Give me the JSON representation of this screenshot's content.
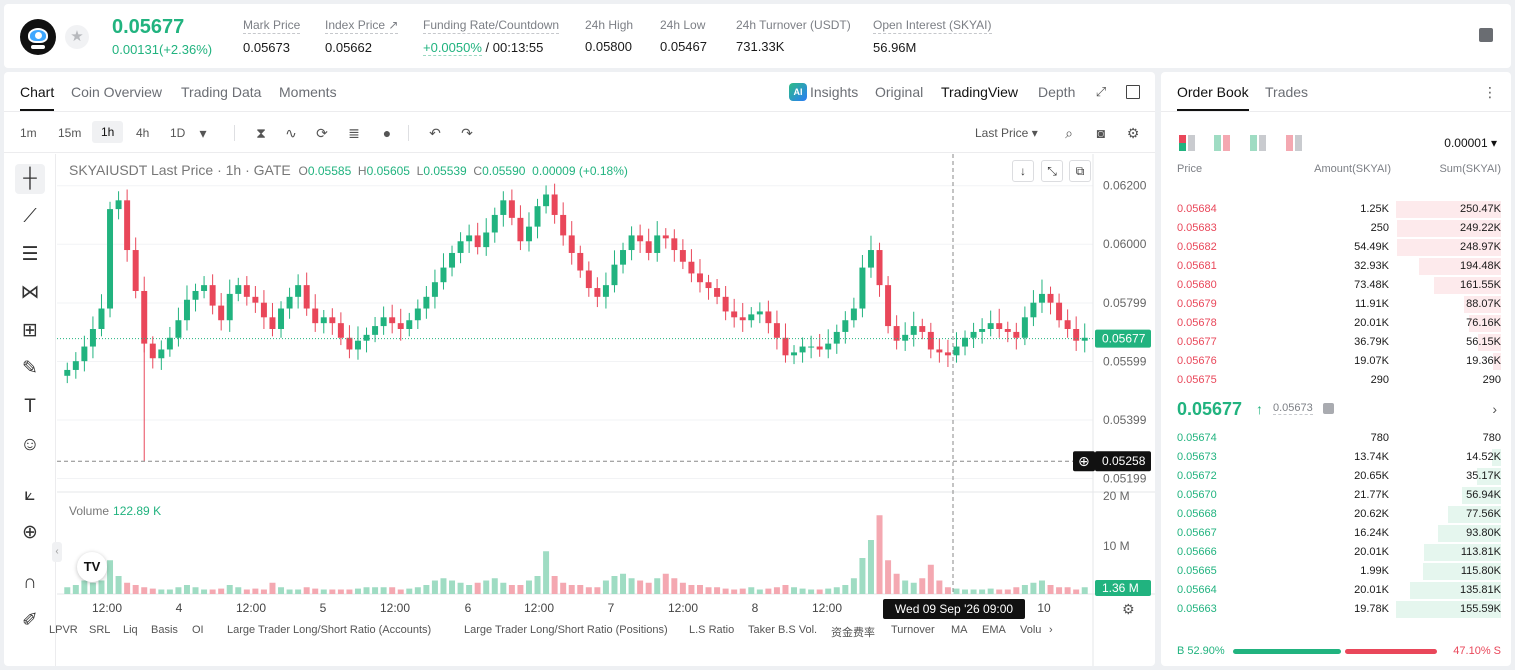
{
  "ticker": {
    "last_price": "0.05677",
    "change": "0.00131(+2.36%)",
    "stats": [
      {
        "label": "Mark Price",
        "value": "0.05673"
      },
      {
        "label": "Index Price ↗",
        "value": "0.05662"
      },
      {
        "label": "Funding Rate/Countdown",
        "value_green": "+0.0050%",
        "value": "/ 00:13:55"
      },
      {
        "label": "24h High",
        "value": "0.05800"
      },
      {
        "label": "24h Low",
        "value": "0.05467"
      },
      {
        "label": "24h Turnover (USDT)",
        "value": "731.33K"
      },
      {
        "label": "Open Interest (SKYAI)",
        "value": "56.96M"
      }
    ]
  },
  "chart_tabs": [
    "Chart",
    "Coin Overview",
    "Trading Data",
    "Moments"
  ],
  "view_tabs": {
    "ai_badge": "AI",
    "insights": "Insights",
    "original": "Original",
    "tradingview": "TradingView",
    "depth": "Depth"
  },
  "toolbar": {
    "timeframes": [
      "1m",
      "15m",
      "1h",
      "4h",
      "1D"
    ],
    "price_type": "Last Price"
  },
  "icons": {
    "star": "★",
    "dropdown": "▾",
    "candles": "⧗",
    "indicators": "∿",
    "replay": "⟳",
    "templates": "≣",
    "add": "●",
    "undo": "↶",
    "redo": "↷",
    "search": "⌕",
    "camera": "◙",
    "gear": "⚙",
    "crosshair": "┼",
    "trendline": "⟋",
    "fib": "☰",
    "pattern": "⋈",
    "ruler": "⊞",
    "brush": "✎",
    "text": "T",
    "emoji": "☺",
    "measure": "⟀",
    "zoom": "⊕",
    "magnet": "∩",
    "pencil": "✐",
    "arrow_down": "↓",
    "shrink": "⤡",
    "restore": "⧉",
    "expand": "⤢",
    "more": "⋮",
    "chevron_right": "›",
    "chevron_left": "‹",
    "up_arrow": "↑"
  },
  "chart_data": {
    "type": "candlestick",
    "symbol_title": "SKYAIUSDT Last Price · 1h · GATE",
    "ohlc": {
      "o_label": "O",
      "o": "0.05585",
      "h_label": "H",
      "h": "0.05605",
      "l_label": "L",
      "l": "0.05539",
      "c_label": "C",
      "c": "0.05590",
      "chg": "0.00009 (+0.18%)"
    },
    "price_axis": [
      "0.06200",
      "0.06000",
      "0.05799",
      "0.05599",
      "0.05399",
      "0.05199"
    ],
    "ylim": [
      0.0518,
      0.0624
    ],
    "current_price_label": "0.05677",
    "current_price": 0.05677,
    "crosshair_price_label": "0.05258",
    "crosshair_price": 0.05258,
    "crosshair_time": "Wed 09 Sep '26   09:00",
    "volume_label": "Volume",
    "volume_value": "122.89 K",
    "volume_axis": [
      "20 M",
      "10 M"
    ],
    "volume_last_label": "1.36 M",
    "time_axis": [
      "12:00",
      "4",
      "12:00",
      "5",
      "12:00",
      "6",
      "12:00",
      "7",
      "12:00",
      "8",
      "12:00",
      "10"
    ],
    "close_series": [
      0.0557,
      0.056,
      0.0565,
      0.0571,
      0.0578,
      0.0612,
      0.0615,
      0.0598,
      0.0584,
      0.0566,
      0.0561,
      0.0564,
      0.0568,
      0.0574,
      0.0581,
      0.0584,
      0.0586,
      0.0579,
      0.0574,
      0.0583,
      0.0586,
      0.0582,
      0.058,
      0.0575,
      0.0571,
      0.0578,
      0.0582,
      0.0586,
      0.0578,
      0.0573,
      0.0575,
      0.0573,
      0.0568,
      0.0564,
      0.0567,
      0.0569,
      0.0572,
      0.0575,
      0.0573,
      0.0571,
      0.0574,
      0.0578,
      0.0582,
      0.0587,
      0.0592,
      0.0597,
      0.0601,
      0.0603,
      0.0599,
      0.0604,
      0.061,
      0.0615,
      0.0609,
      0.0601,
      0.0606,
      0.0613,
      0.0617,
      0.061,
      0.0603,
      0.0597,
      0.0591,
      0.0585,
      0.0582,
      0.0586,
      0.0593,
      0.0598,
      0.0603,
      0.0601,
      0.0597,
      0.0603,
      0.0602,
      0.0598,
      0.0594,
      0.059,
      0.0587,
      0.0585,
      0.0582,
      0.0577,
      0.0575,
      0.0574,
      0.0576,
      0.0577,
      0.0573,
      0.0568,
      0.0562,
      0.0563,
      0.0565,
      0.0565,
      0.0564,
      0.0566,
      0.057,
      0.0574,
      0.0578,
      0.0592,
      0.0598,
      0.0586,
      0.0572,
      0.0567,
      0.0569,
      0.0572,
      0.057,
      0.0564,
      0.0563,
      0.0562,
      0.0565,
      0.0568,
      0.057,
      0.0571,
      0.0573,
      0.0571,
      0.057,
      0.0568,
      0.0575,
      0.058,
      0.0583,
      0.058,
      0.0574,
      0.0571,
      0.0567,
      0.0568
    ],
    "volume_series": [
      1.5,
      2.0,
      3.0,
      2.5,
      3.0,
      7.5,
      4.0,
      2.5,
      2.0,
      1.5,
      1.2,
      1.0,
      1.0,
      1.5,
      2.0,
      1.5,
      1.0,
      1.0,
      1.2,
      2.0,
      1.5,
      1.0,
      1.2,
      1.0,
      2.5,
      1.5,
      1.0,
      1.0,
      1.5,
      1.2,
      1.0,
      1.0,
      1.0,
      1.0,
      1.2,
      1.5,
      1.5,
      1.5,
      1.5,
      1.0,
      1.2,
      1.5,
      2.0,
      3.0,
      3.5,
      3.0,
      2.5,
      2.0,
      2.5,
      3.0,
      3.5,
      2.5,
      2.0,
      2.0,
      3.0,
      4.0,
      9.5,
      4.0,
      2.5,
      2.0,
      2.0,
      1.5,
      1.5,
      3.0,
      4.0,
      4.5,
      3.5,
      3.0,
      2.5,
      3.5,
      4.5,
      3.5,
      2.5,
      2.0,
      2.0,
      1.5,
      1.5,
      1.2,
      1.0,
      1.2,
      1.5,
      1.0,
      1.2,
      1.5,
      2.0,
      1.5,
      1.2,
      1.0,
      1.0,
      1.2,
      1.5,
      2.0,
      3.5,
      8.0,
      12.0,
      17.5,
      7.5,
      4.5,
      3.0,
      2.5,
      3.5,
      6.5,
      3.0,
      1.5,
      1.2,
      1.0,
      1.0,
      1.0,
      1.2,
      1.0,
      1.0,
      1.5,
      2.0,
      2.5,
      3.0,
      2.0,
      1.5,
      1.5,
      1.0,
      1.5
    ]
  },
  "indicators": [
    "LPVR",
    "SRL",
    "Liq",
    "Basis",
    "OI",
    "Large Trader Long/Short Ratio (Accounts)",
    "Large Trader Long/Short Ratio (Positions)",
    "L.S Ratio",
    "Taker B.S Vol.",
    "资金费率",
    "Turnover",
    "MA",
    "EMA",
    "Volu"
  ],
  "order_book": {
    "tabs": [
      "Order Book",
      "Trades"
    ],
    "precision": "0.00001 ▾",
    "headers": {
      "price": "Price",
      "amount": "Amount(SKYAI)",
      "sum": "Sum(SKYAI)"
    },
    "asks": [
      {
        "price": "0.05684",
        "amount": "1.25K",
        "sum": "250.47K",
        "depth": 1.0
      },
      {
        "price": "0.05683",
        "amount": "250",
        "sum": "249.22K",
        "depth": 0.99
      },
      {
        "price": "0.05682",
        "amount": "54.49K",
        "sum": "248.97K",
        "depth": 0.99
      },
      {
        "price": "0.05681",
        "amount": "32.93K",
        "sum": "194.48K",
        "depth": 0.78
      },
      {
        "price": "0.05680",
        "amount": "73.48K",
        "sum": "161.55K",
        "depth": 0.64
      },
      {
        "price": "0.05679",
        "amount": "11.91K",
        "sum": "88.07K",
        "depth": 0.35
      },
      {
        "price": "0.05678",
        "amount": "20.01K",
        "sum": "76.16K",
        "depth": 0.3
      },
      {
        "price": "0.05677",
        "amount": "36.79K",
        "sum": "56.15K",
        "depth": 0.22
      },
      {
        "price": "0.05676",
        "amount": "19.07K",
        "sum": "19.36K",
        "depth": 0.08
      },
      {
        "price": "0.05675",
        "amount": "290",
        "sum": "290",
        "depth": 0.0
      }
    ],
    "mid": {
      "price": "0.05677",
      "mark": "0.05673"
    },
    "bids": [
      {
        "price": "0.05674",
        "amount": "780",
        "sum": "780",
        "depth": 0.0
      },
      {
        "price": "0.05673",
        "amount": "13.74K",
        "sum": "14.52K",
        "depth": 0.09
      },
      {
        "price": "0.05672",
        "amount": "20.65K",
        "sum": "35.17K",
        "depth": 0.23
      },
      {
        "price": "0.05670",
        "amount": "21.77K",
        "sum": "56.94K",
        "depth": 0.37
      },
      {
        "price": "0.05668",
        "amount": "20.62K",
        "sum": "77.56K",
        "depth": 0.5
      },
      {
        "price": "0.05667",
        "amount": "16.24K",
        "sum": "93.80K",
        "depth": 0.6
      },
      {
        "price": "0.05666",
        "amount": "20.01K",
        "sum": "113.81K",
        "depth": 0.73
      },
      {
        "price": "0.05665",
        "amount": "1.99K",
        "sum": "115.80K",
        "depth": 0.74
      },
      {
        "price": "0.05664",
        "amount": "20.01K",
        "sum": "135.81K",
        "depth": 0.87
      },
      {
        "price": "0.05663",
        "amount": "19.78K",
        "sum": "155.59K",
        "depth": 1.0
      }
    ],
    "buy_ratio_label": "B 52.90%",
    "sell_ratio_label": "47.10% S",
    "buy_ratio": 0.529
  },
  "colors": {
    "green": "#21b37f",
    "red": "#e9475a",
    "green_light": "#9fdcc3",
    "red_light": "#f4a8b1"
  }
}
